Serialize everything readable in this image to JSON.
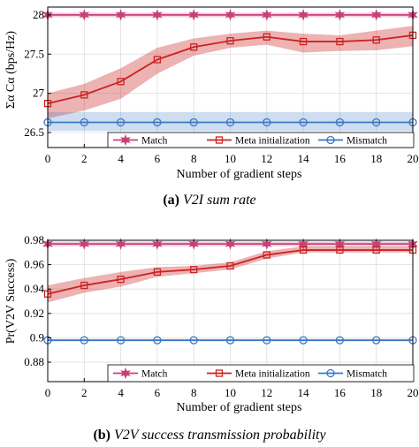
{
  "panels": [
    {
      "caption_letter": "(a)",
      "caption_text": "V2I sum rate",
      "chart_data": {
        "type": "line",
        "xlabel": "Number of gradient steps",
        "ylabel": "Σα Cα (bps/Hz)",
        "xlim": [
          0,
          20
        ],
        "ylim": [
          26.5,
          28.1
        ],
        "xticks": [
          0,
          2,
          4,
          6,
          8,
          10,
          12,
          14,
          16,
          18,
          20
        ],
        "yticks": [
          26.5,
          27,
          27.5,
          28
        ],
        "ytick_labels": [
          "26.5",
          "27",
          "27.5",
          "28"
        ],
        "grid": true,
        "legend_position": "bottom",
        "x": [
          0,
          2,
          4,
          6,
          8,
          10,
          12,
          14,
          16,
          18,
          20
        ],
        "series": [
          {
            "name": "Match",
            "color": "#c8407a",
            "marker": "star",
            "values": [
              28.0,
              28.0,
              28.0,
              28.0,
              28.0,
              28.0,
              28.0,
              28.0,
              28.0,
              28.0,
              28.0
            ],
            "band_low": [
              27.97,
              27.97,
              27.97,
              27.97,
              27.97,
              27.97,
              27.97,
              27.97,
              27.97,
              27.97,
              27.97
            ],
            "band_high": [
              28.03,
              28.03,
              28.03,
              28.03,
              28.03,
              28.03,
              28.03,
              28.03,
              28.03,
              28.03,
              28.03
            ]
          },
          {
            "name": "Meta initialization",
            "color": "#cc2222",
            "marker": "square",
            "values": [
              26.87,
              26.98,
              27.15,
              27.43,
              27.59,
              27.67,
              27.72,
              27.66,
              27.66,
              27.68,
              27.74
            ],
            "band_low": [
              26.68,
              26.78,
              26.93,
              27.25,
              27.48,
              27.58,
              27.62,
              27.52,
              27.54,
              27.55,
              27.6
            ],
            "band_high": [
              27.0,
              27.12,
              27.32,
              27.58,
              27.7,
              27.76,
              27.8,
              27.76,
              27.74,
              27.8,
              27.86
            ]
          },
          {
            "name": "Mismatch",
            "color": "#3a78c4",
            "marker": "circle",
            "values": [
              26.63,
              26.63,
              26.63,
              26.63,
              26.63,
              26.63,
              26.63,
              26.63,
              26.63,
              26.63,
              26.63
            ],
            "band_low": [
              26.52,
              26.52,
              26.52,
              26.52,
              26.52,
              26.52,
              26.52,
              26.52,
              26.52,
              26.52,
              26.52
            ],
            "band_high": [
              26.76,
              26.76,
              26.76,
              26.76,
              26.76,
              26.76,
              26.76,
              26.76,
              26.76,
              26.76,
              26.76
            ]
          }
        ]
      }
    },
    {
      "caption_letter": "(b)",
      "caption_text": "V2V success transmission probability",
      "chart_data": {
        "type": "line",
        "xlabel": "Number of gradient steps",
        "ylabel": "Pr(V2V Success)",
        "xlim": [
          0,
          20
        ],
        "ylim": [
          0.88,
          0.98
        ],
        "xticks": [
          0,
          2,
          4,
          6,
          8,
          10,
          12,
          14,
          16,
          18,
          20
        ],
        "yticks": [
          0.88,
          0.9,
          0.92,
          0.94,
          0.96,
          0.98
        ],
        "ytick_labels": [
          "0.88",
          "0.9",
          "0.92",
          "0.94",
          "0.96",
          "0.98"
        ],
        "grid": true,
        "legend_position": "bottom",
        "x": [
          0,
          2,
          4,
          6,
          8,
          10,
          12,
          14,
          16,
          18,
          20
        ],
        "series": [
          {
            "name": "Match",
            "color": "#c8407a",
            "marker": "star",
            "values": [
              0.977,
              0.977,
              0.977,
              0.977,
              0.977,
              0.977,
              0.977,
              0.977,
              0.977,
              0.977,
              0.977
            ],
            "band_low": [
              0.975,
              0.975,
              0.975,
              0.975,
              0.975,
              0.975,
              0.975,
              0.975,
              0.975,
              0.975,
              0.975
            ],
            "band_high": [
              0.979,
              0.979,
              0.979,
              0.979,
              0.979,
              0.979,
              0.979,
              0.979,
              0.979,
              0.979,
              0.979
            ]
          },
          {
            "name": "Meta initialization",
            "color": "#cc2222",
            "marker": "square",
            "values": [
              0.936,
              0.943,
              0.948,
              0.954,
              0.956,
              0.959,
              0.968,
              0.972,
              0.972,
              0.972,
              0.972
            ],
            "band_low": [
              0.929,
              0.937,
              0.942,
              0.95,
              0.953,
              0.956,
              0.965,
              0.97,
              0.97,
              0.97,
              0.97
            ],
            "band_high": [
              0.943,
              0.949,
              0.954,
              0.958,
              0.959,
              0.962,
              0.971,
              0.975,
              0.975,
              0.975,
              0.975
            ]
          },
          {
            "name": "Mismatch",
            "color": "#3a78c4",
            "marker": "circle",
            "values": [
              0.898,
              0.898,
              0.898,
              0.898,
              0.898,
              0.898,
              0.898,
              0.898,
              0.898,
              0.898,
              0.898
            ],
            "band_low": [
              0.897,
              0.897,
              0.897,
              0.897,
              0.897,
              0.897,
              0.897,
              0.897,
              0.897,
              0.897,
              0.897
            ],
            "band_high": [
              0.899,
              0.899,
              0.899,
              0.899,
              0.899,
              0.899,
              0.899,
              0.899,
              0.899,
              0.899,
              0.899
            ]
          }
        ]
      }
    }
  ]
}
